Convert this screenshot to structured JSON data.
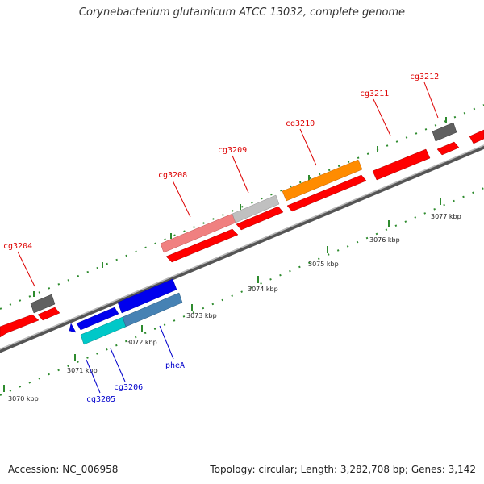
{
  "title": "Corynebacterium glutamicum ATCC 13032, complete genome",
  "accession": "Accession: NC_006958",
  "summary": "Topology: circular; Length: 3,282,708 bp; Genes: 3,142",
  "colors": {
    "red": "#ff0000",
    "gray": "#606060",
    "orange": "#ff8c00",
    "blue": "#0000ee",
    "steelblue": "#4682b4",
    "cyan": "#00c8c8",
    "pink": "#f08080",
    "lightgray": "#c0c0c0",
    "ticks": "#2e8b2e",
    "label_red": "#dd0000",
    "label_blue": "#0000cc"
  },
  "scale_labels": [
    "3070 kbp",
    "3071 kbp",
    "3072 kbp",
    "3073 kbp",
    "3074 kbp",
    "3075 kbp",
    "3076 kbp",
    "3077 kbp"
  ],
  "gene_labels": [
    {
      "text": "cg3204",
      "color": "red"
    },
    {
      "text": "cg3208",
      "color": "red"
    },
    {
      "text": "cg3209",
      "color": "red"
    },
    {
      "text": "cg3210",
      "color": "red"
    },
    {
      "text": "cg3211",
      "color": "red"
    },
    {
      "text": "cg3212",
      "color": "red"
    },
    {
      "text": "cg3205",
      "color": "blue"
    },
    {
      "text": "cg3206",
      "color": "blue"
    },
    {
      "text": "pheA",
      "color": "blue"
    }
  ]
}
